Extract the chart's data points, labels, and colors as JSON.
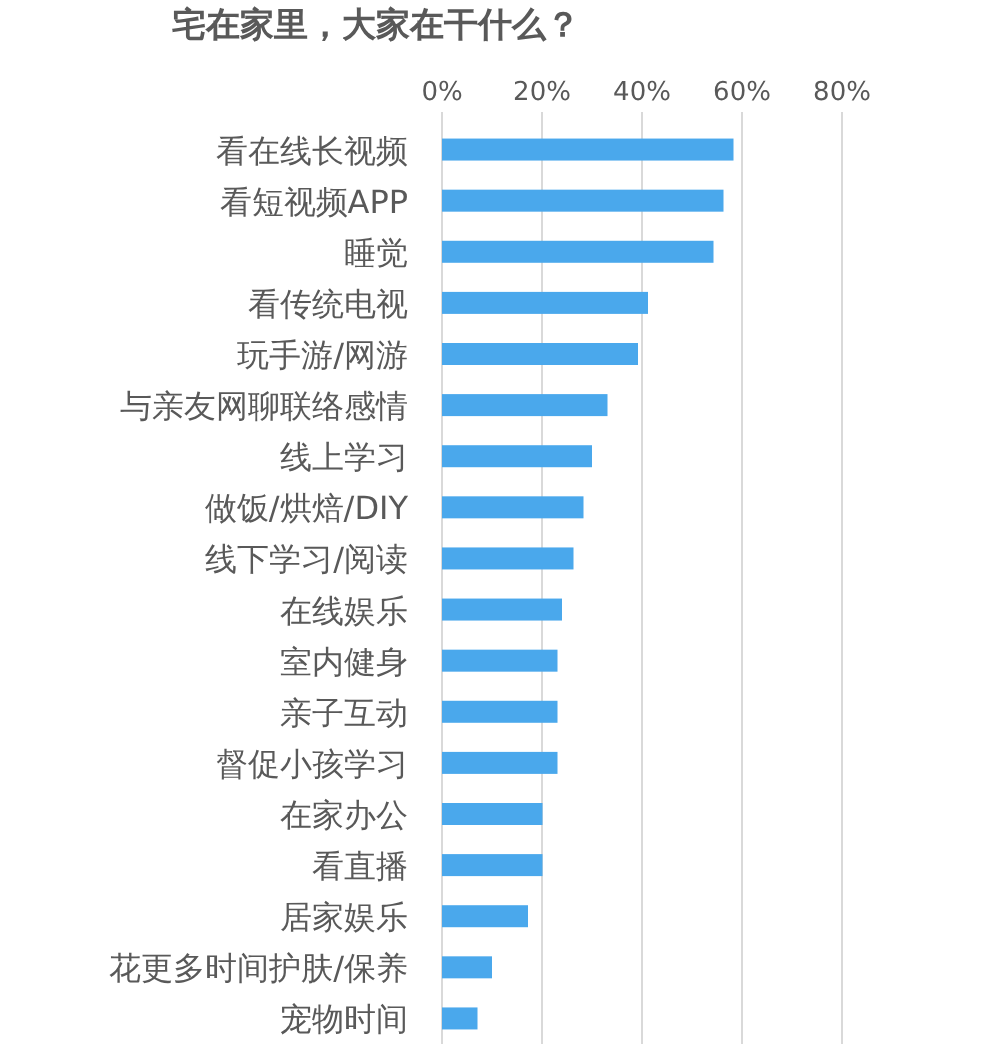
{
  "chart_data": {
    "type": "bar",
    "orientation": "horizontal",
    "title": "宅在家里，大家在干什么？",
    "categories": [
      "看在线长视频",
      "看短视频APP",
      "睡觉",
      "看传统电视",
      "玩手游/网游",
      "与亲友网聊联络感情",
      "线上学习",
      "做饭/烘焙/DIY",
      "线下学习/阅读",
      "在线娱乐",
      "室内健身",
      "亲子互动",
      "督促小孩学习",
      "在家办公",
      "看直播",
      "居家娱乐",
      "花更多时间护肤/保养",
      "宠物时间"
    ],
    "values": [
      58.3,
      56.3,
      54.3,
      41.2,
      39.2,
      33.1,
      30,
      28.3,
      26.3,
      24,
      23.1,
      23.1,
      23.1,
      20.1,
      20.1,
      17.2,
      10,
      7.1
    ],
    "color": "#4aa8ec",
    "xlim": [
      0,
      80
    ],
    "xticks": [
      {
        "value": 0,
        "label": "0%"
      },
      {
        "value": 20,
        "label": "20%"
      },
      {
        "value": 40,
        "label": "40%"
      },
      {
        "value": 60,
        "label": "60%"
      },
      {
        "value": 80,
        "label": "80%"
      }
    ],
    "grid": "x"
  }
}
